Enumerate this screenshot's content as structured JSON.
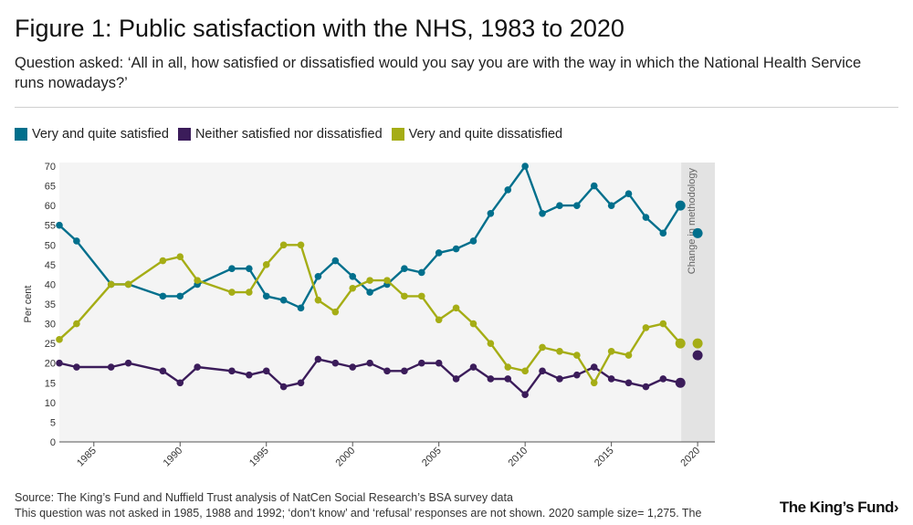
{
  "header": {
    "title": "Figure 1: Public satisfaction with the NHS, 1983 to 2020",
    "subtitle": "Question asked: ‘All in all, how satisfied or dissatisfied would you say you are with the way in which the National Health Service runs nowadays?’"
  },
  "colors": {
    "satisfied": "#006f8c",
    "neither": "#3b1c5a",
    "dissatisfied": "#a5ad15",
    "plot_bg": "#f4f4f4",
    "methodology_band": "#e3e3e3"
  },
  "chart_data": {
    "type": "line",
    "title": "Figure 1: Public satisfaction with the NHS, 1983 to 2020",
    "xlabel": "",
    "ylabel": "Per cent",
    "xlim": [
      1983,
      2021
    ],
    "ylim": [
      0,
      70
    ],
    "yticks": [
      0,
      5,
      10,
      15,
      20,
      25,
      30,
      35,
      40,
      45,
      50,
      55,
      60,
      65,
      70
    ],
    "xticks": [
      1985,
      1990,
      1995,
      2000,
      2005,
      2010,
      2015,
      2020
    ],
    "grid": false,
    "legend": "top-left",
    "methodology_change": {
      "from": 2019,
      "to": 2020,
      "label": "Change in methodology"
    },
    "series": [
      {
        "name": "Very and quite satisfied",
        "color_key": "satisfied",
        "x": [
          1983,
          1984,
          1986,
          1987,
          1989,
          1990,
          1991,
          1993,
          1994,
          1995,
          1996,
          1997,
          1998,
          1999,
          2000,
          2001,
          2002,
          2003,
          2004,
          2005,
          2006,
          2007,
          2008,
          2009,
          2010,
          2011,
          2012,
          2013,
          2014,
          2015,
          2016,
          2017,
          2018,
          2019
        ],
        "values": [
          55,
          51,
          40,
          40,
          37,
          37,
          40,
          44,
          44,
          37,
          36,
          34,
          42,
          46,
          42,
          38,
          40,
          44,
          43,
          48,
          49,
          51,
          58,
          64,
          70,
          58,
          60,
          60,
          65,
          60,
          63,
          57,
          53,
          60
        ],
        "after": {
          "x": 2020,
          "value": 53
        }
      },
      {
        "name": "Neither satisfied nor dissatisfied",
        "color_key": "neither",
        "x": [
          1983,
          1984,
          1986,
          1987,
          1989,
          1990,
          1991,
          1993,
          1994,
          1995,
          1996,
          1997,
          1998,
          1999,
          2000,
          2001,
          2002,
          2003,
          2004,
          2005,
          2006,
          2007,
          2008,
          2009,
          2010,
          2011,
          2012,
          2013,
          2014,
          2015,
          2016,
          2017,
          2018,
          2019
        ],
        "values": [
          20,
          19,
          19,
          20,
          18,
          15,
          19,
          18,
          17,
          18,
          14,
          15,
          21,
          20,
          19,
          20,
          18,
          18,
          20,
          20,
          16,
          19,
          16,
          16,
          12,
          18,
          16,
          17,
          19,
          16,
          15,
          14,
          16,
          15
        ],
        "after": {
          "x": 2020,
          "value": 22
        }
      },
      {
        "name": "Very and quite dissatisfied",
        "color_key": "dissatisfied",
        "x": [
          1983,
          1984,
          1986,
          1987,
          1989,
          1990,
          1991,
          1993,
          1994,
          1995,
          1996,
          1997,
          1998,
          1999,
          2000,
          2001,
          2002,
          2003,
          2004,
          2005,
          2006,
          2007,
          2008,
          2009,
          2010,
          2011,
          2012,
          2013,
          2014,
          2015,
          2016,
          2017,
          2018,
          2019
        ],
        "values": [
          26,
          30,
          40,
          40,
          46,
          47,
          41,
          38,
          38,
          45,
          50,
          50,
          36,
          33,
          39,
          41,
          41,
          37,
          37,
          31,
          34,
          30,
          25,
          19,
          18,
          24,
          23,
          22,
          15,
          23,
          22,
          29,
          30,
          25
        ],
        "after": {
          "x": 2020,
          "value": 25
        }
      }
    ]
  },
  "footer": {
    "source": "Source: The King’s Fund and Nuffield Trust analysis of NatCen Social Research’s BSA survey data",
    "note": "This question was not asked in 1985, 1988 and 1992; ‘don’t know’ and ‘refusal’ responses are not shown. 2020 sample size= 1,275. The",
    "logo": "The King’s Fund›"
  }
}
